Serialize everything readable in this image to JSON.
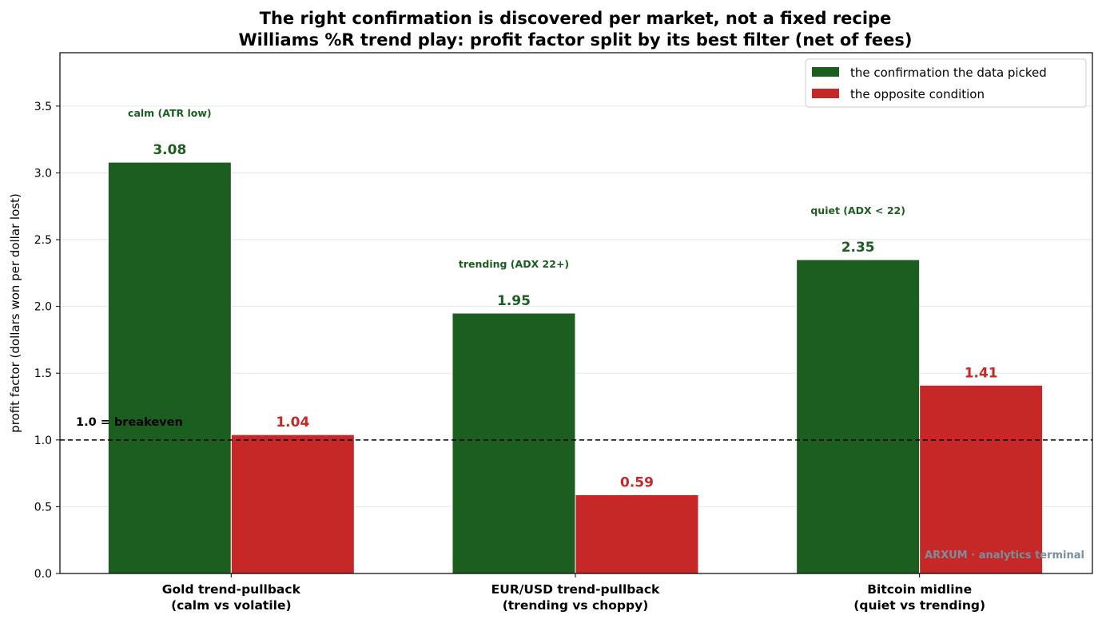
{
  "chart_data": {
    "type": "bar",
    "title": "The right confirmation is discovered per market, not a fixed recipe",
    "subtitle": "Williams %R trend play: profit factor split by its best filter (net of fees)",
    "xlabel": "",
    "ylabel": "profit factor (dollars won per dollar lost)",
    "ylim": [
      0,
      3.9
    ],
    "yticks": [
      "0.0",
      "0.5",
      "1.0",
      "1.5",
      "2.0",
      "2.5",
      "3.0",
      "3.5"
    ],
    "categories": [
      [
        "Gold trend-pullback",
        "(calm vs volatile)"
      ],
      [
        "EUR/USD trend-pullback",
        "(trending vs choppy)"
      ],
      [
        "Bitcoin midline",
        "(quiet vs trending)"
      ]
    ],
    "series": [
      {
        "name": "the confirmation the data picked",
        "values": [
          3.08,
          1.95,
          2.35
        ],
        "labels": [
          "3.08",
          "1.95",
          "2.35"
        ],
        "color": "#1b5e20"
      },
      {
        "name": "the opposite condition",
        "values": [
          1.04,
          0.59,
          1.41
        ],
        "labels": [
          "1.04",
          "0.59",
          "1.41"
        ],
        "color": "#c62828"
      }
    ],
    "filter_notes": [
      "calm (ATR low)",
      "trending (ADX 22+)",
      "quiet (ADX < 22)"
    ],
    "reference_line": {
      "value": 1.0,
      "label": "1.0 = breakeven"
    },
    "legend_position": "top-right",
    "grid": "horizontal",
    "watermark": "ARXUM · analytics terminal"
  }
}
